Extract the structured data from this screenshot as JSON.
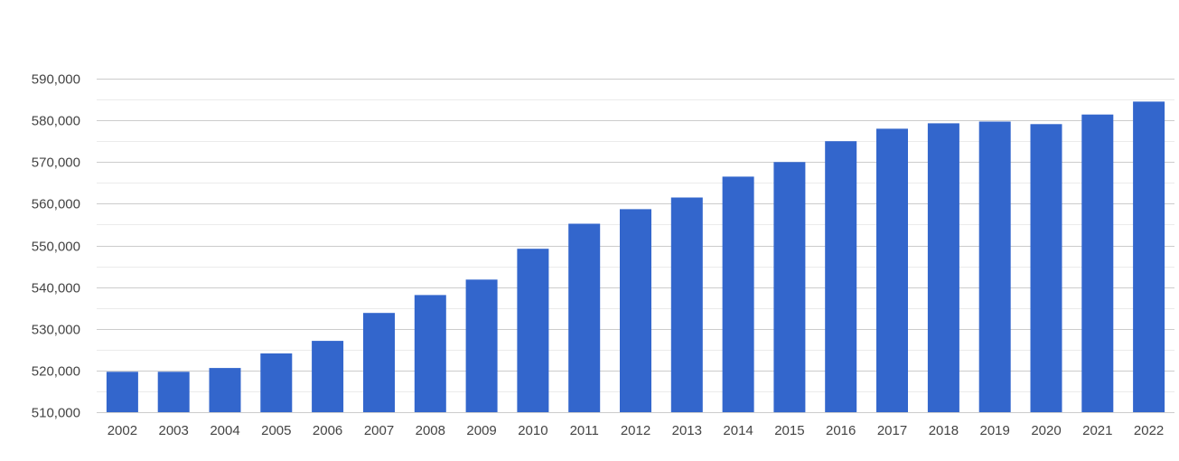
{
  "chart_data": {
    "type": "bar",
    "title": "",
    "xlabel": "",
    "ylabel": "",
    "categories": [
      "2002",
      "2003",
      "2004",
      "2005",
      "2006",
      "2007",
      "2008",
      "2009",
      "2010",
      "2011",
      "2012",
      "2013",
      "2014",
      "2015",
      "2016",
      "2017",
      "2018",
      "2019",
      "2020",
      "2021",
      "2022"
    ],
    "values": [
      519700,
      519700,
      520600,
      524100,
      527100,
      533800,
      538100,
      541800,
      549200,
      555200,
      558700,
      561500,
      566500,
      570000,
      575000,
      578000,
      579300,
      579700,
      579100,
      581400,
      584500
    ],
    "ylim": [
      510000,
      590000
    ],
    "yticks": [
      510000,
      520000,
      530000,
      540000,
      550000,
      560000,
      570000,
      580000,
      590000
    ],
    "ytick_labels": [
      "510,000",
      "520,000",
      "530,000",
      "540,000",
      "550,000",
      "560,000",
      "570,000",
      "580,000",
      "590,000"
    ],
    "grid": true,
    "minor_grid": true,
    "legend": "none",
    "bar_color": "#3366cc"
  }
}
